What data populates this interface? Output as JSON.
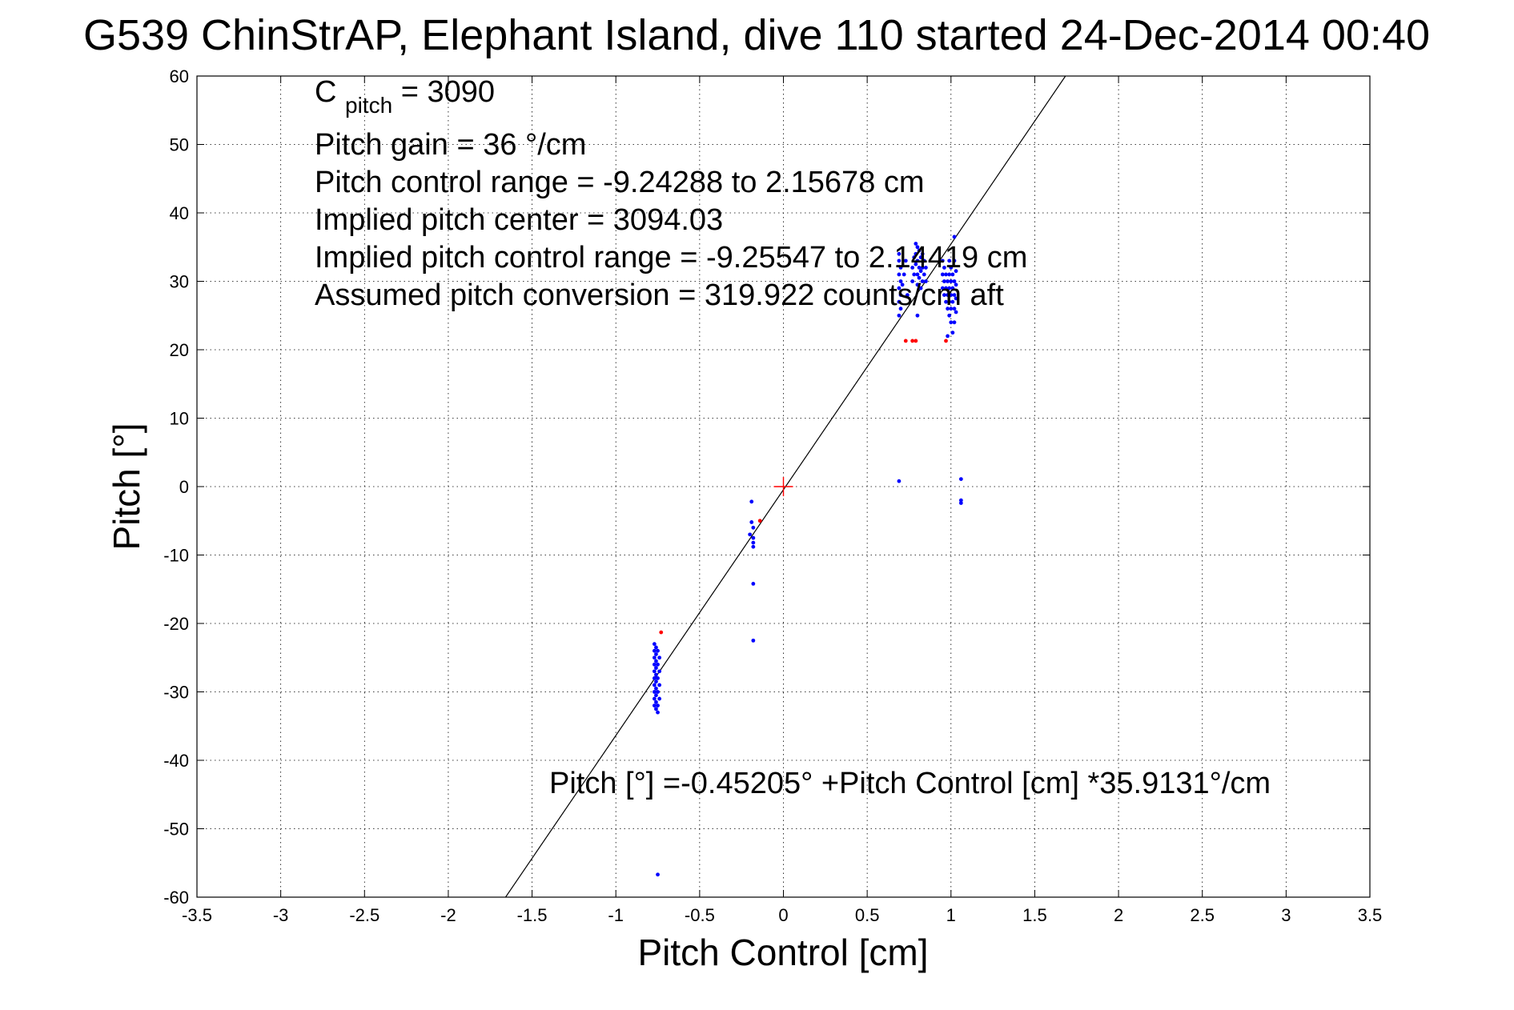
{
  "chart_data": {
    "type": "scatter",
    "title": "G539 ChinStrAP, Elephant Island, dive 110 started 24-Dec-2014 00:40",
    "xlabel": "Pitch Control [cm]",
    "ylabel": "Pitch [°]",
    "xlim": [
      -3.5,
      3.5
    ],
    "ylim": [
      -60,
      60
    ],
    "xticks": [
      -3.5,
      -3,
      -2.5,
      -2,
      -1.5,
      -1,
      -0.5,
      0,
      0.5,
      1,
      1.5,
      2,
      2.5,
      3,
      3.5
    ],
    "yticks": [
      -60,
      -50,
      -40,
      -30,
      -20,
      -10,
      0,
      10,
      20,
      30,
      40,
      50,
      60
    ],
    "xtick_labels": [
      "-3.5",
      "-3",
      "-2.5",
      "-2",
      "-1.5",
      "-1",
      "-0.5",
      "0",
      "0.5",
      "1",
      "1.5",
      "2",
      "2.5",
      "3",
      "3.5"
    ],
    "ytick_labels": [
      "-60",
      "-50",
      "-40",
      "-30",
      "-20",
      "-10",
      "0",
      "10",
      "20",
      "30",
      "40",
      "50",
      "60"
    ],
    "grid": true,
    "colors": {
      "included": "#0000ff",
      "excluded": "#ff0000",
      "fit_line": "#000000",
      "center_marker": "#ff0000"
    },
    "series": [
      {
        "color": "#0000ff",
        "points": [
          [
            -0.77,
            -23.0
          ],
          [
            -0.77,
            -24.0
          ],
          [
            -0.77,
            -25.0
          ],
          [
            -0.77,
            -26.0
          ],
          [
            -0.77,
            -27.0
          ],
          [
            -0.77,
            -28.0
          ],
          [
            -0.77,
            -29.0
          ],
          [
            -0.77,
            -30.0
          ],
          [
            -0.77,
            -31.0
          ],
          [
            -0.77,
            -32.0
          ],
          [
            -0.76,
            -23.5
          ],
          [
            -0.76,
            -24.5
          ],
          [
            -0.76,
            -25.5
          ],
          [
            -0.76,
            -26.5
          ],
          [
            -0.76,
            -27.5
          ],
          [
            -0.76,
            -28.5
          ],
          [
            -0.76,
            -29.5
          ],
          [
            -0.76,
            -30.5
          ],
          [
            -0.76,
            -31.5
          ],
          [
            -0.76,
            -32.5
          ],
          [
            -0.75,
            -24.0
          ],
          [
            -0.75,
            -26.0
          ],
          [
            -0.75,
            -28.0
          ],
          [
            -0.75,
            -30.0
          ],
          [
            -0.75,
            -32.0
          ],
          [
            -0.75,
            -33.0
          ],
          [
            -0.74,
            -25.0
          ],
          [
            -0.74,
            -27.0
          ],
          [
            -0.74,
            -29.0
          ],
          [
            -0.74,
            -31.0
          ],
          [
            -0.75,
            -56.7
          ],
          [
            -0.19,
            -2.2
          ],
          [
            -0.19,
            -5.2
          ],
          [
            -0.18,
            -6.0
          ],
          [
            -0.18,
            -7.5
          ],
          [
            -0.18,
            -8.2
          ],
          [
            -0.18,
            -8.8
          ],
          [
            -0.2,
            -7.0
          ],
          [
            -0.18,
            -14.2
          ],
          [
            -0.18,
            -22.5
          ],
          [
            0.69,
            0.8
          ],
          [
            0.69,
            25.0
          ],
          [
            0.69,
            27.0
          ],
          [
            0.69,
            29.0
          ],
          [
            0.69,
            31.0
          ],
          [
            0.69,
            33.0
          ],
          [
            0.69,
            34.0
          ],
          [
            0.7,
            26.0
          ],
          [
            0.7,
            28.0
          ],
          [
            0.7,
            30.0
          ],
          [
            0.7,
            32.0
          ],
          [
            0.71,
            29.5
          ],
          [
            0.72,
            31.0
          ],
          [
            0.73,
            33.0
          ],
          [
            0.74,
            28.0
          ],
          [
            0.77,
            30.0
          ],
          [
            0.77,
            32.0
          ],
          [
            0.78,
            33.5
          ],
          [
            0.78,
            31.0
          ],
          [
            0.79,
            35.5
          ],
          [
            0.79,
            34.0
          ],
          [
            0.79,
            32.5
          ],
          [
            0.8,
            35.0
          ],
          [
            0.8,
            33.0
          ],
          [
            0.8,
            31.0
          ],
          [
            0.8,
            29.5
          ],
          [
            0.8,
            25.0
          ],
          [
            0.81,
            34.5
          ],
          [
            0.81,
            32.0
          ],
          [
            0.81,
            30.5
          ],
          [
            0.82,
            33.5
          ],
          [
            0.82,
            31.5
          ],
          [
            0.82,
            29.0
          ],
          [
            0.83,
            34.0
          ],
          [
            0.83,
            32.0
          ],
          [
            0.83,
            30.0
          ],
          [
            0.84,
            33.0
          ],
          [
            0.84,
            31.0
          ],
          [
            0.85,
            32.0
          ],
          [
            0.85,
            30.0
          ],
          [
            0.95,
            33.0
          ],
          [
            0.95,
            31.0
          ],
          [
            0.95,
            29.0
          ],
          [
            0.96,
            32.0
          ],
          [
            0.96,
            30.0
          ],
          [
            0.96,
            28.0
          ],
          [
            0.97,
            31.0
          ],
          [
            0.97,
            29.0
          ],
          [
            0.97,
            27.0
          ],
          [
            0.98,
            30.0
          ],
          [
            0.98,
            28.0
          ],
          [
            0.98,
            26.0
          ],
          [
            0.98,
            22.0
          ],
          [
            0.99,
            33.0
          ],
          [
            0.99,
            31.0
          ],
          [
            0.99,
            29.0
          ],
          [
            0.99,
            27.0
          ],
          [
            0.99,
            25.0
          ],
          [
            1.0,
            32.0
          ],
          [
            1.0,
            30.0
          ],
          [
            1.0,
            28.0
          ],
          [
            1.0,
            26.0
          ],
          [
            1.0,
            24.0
          ],
          [
            1.01,
            31.0
          ],
          [
            1.01,
            29.0
          ],
          [
            1.01,
            27.0
          ],
          [
            1.01,
            22.5
          ],
          [
            1.02,
            36.5
          ],
          [
            1.02,
            33.0
          ],
          [
            1.02,
            30.0
          ],
          [
            1.02,
            28.0
          ],
          [
            1.02,
            26.0
          ],
          [
            1.02,
            24.0
          ],
          [
            1.03,
            31.5
          ],
          [
            1.03,
            29.5
          ],
          [
            1.03,
            27.5
          ],
          [
            1.03,
            25.5
          ],
          [
            1.06,
            1.1
          ],
          [
            1.06,
            -2.0
          ],
          [
            1.06,
            -2.4
          ]
        ]
      },
      {
        "color": "#ff0000",
        "points": [
          [
            -0.73,
            -21.3
          ],
          [
            -0.14,
            -5.0
          ],
          [
            0.73,
            21.3
          ],
          [
            0.77,
            21.3
          ],
          [
            0.79,
            21.3
          ],
          [
            0.97,
            21.3
          ]
        ]
      }
    ],
    "fit_line": {
      "intercept": -0.45205,
      "slope": 35.9131
    },
    "center_marker": [
      0,
      0
    ],
    "annotation": {
      "c_pitch_main": "C",
      "c_pitch_sub": "pitch",
      "c_pitch_value": " = 3090",
      "lines": [
        "Pitch gain = 36 °/cm",
        "Pitch control range = -9.24288 to 2.15678 cm",
        "Implied pitch center = 3094.03",
        "Implied pitch control range = -9.25547 to 2.14419 cm",
        "Assumed pitch conversion = 319.922 counts/cm aft"
      ]
    },
    "fit_equation": "Pitch [°] =-0.45205° +Pitch Control [cm] *35.9131°/cm"
  }
}
